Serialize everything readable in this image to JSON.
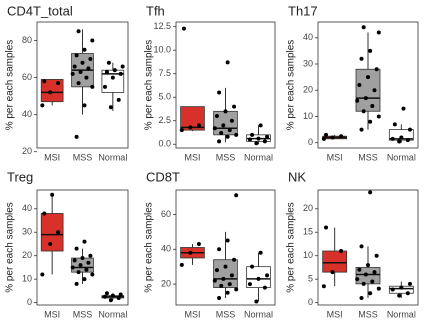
{
  "chart_data": [
    {
      "type": "box",
      "title": "CD4T_total",
      "y_label": "% per each samples",
      "categories": [
        "MSI",
        "MSS",
        "Normal"
      ],
      "ylim": [
        22,
        90
      ],
      "yticks": [
        20,
        40,
        60,
        80
      ],
      "boxes": [
        {
          "color": "#d7312a",
          "whislo": 45,
          "q1": 47,
          "median": 52,
          "q3": 59,
          "whishi": 59,
          "points": [
            45,
            52,
            57,
            58
          ]
        },
        {
          "color": "#a0a0a0",
          "whislo": 40,
          "q1": 55,
          "median": 64,
          "q3": 73,
          "whishi": 86,
          "points": [
            28,
            45,
            55,
            57,
            60,
            62,
            63,
            65,
            66,
            68,
            70,
            72,
            75,
            80,
            85
          ]
        },
        {
          "color": "#ffffff",
          "whislo": 42,
          "q1": 52,
          "median": 62,
          "q3": 64,
          "whishi": 68,
          "points": [
            44,
            48,
            55,
            60,
            62,
            63,
            64,
            66,
            68
          ]
        }
      ]
    },
    {
      "type": "box",
      "title": "Tfh",
      "y_label": "% per each samples",
      "categories": [
        "MSI",
        "MSS",
        "Normal"
      ],
      "ylim": [
        -0.4,
        13
      ],
      "yticks": [
        {
          "value": 0,
          "label": "0.0"
        },
        2.5,
        {
          "value": 5,
          "label": "5.0"
        },
        7.5,
        {
          "value": 10,
          "label": "10.0"
        },
        12.5
      ],
      "boxes": [
        {
          "color": "#d7312a",
          "whislo": 1.4,
          "q1": 1.5,
          "median": 1.8,
          "q3": 4.0,
          "whishi": 4.0,
          "points": [
            1.5,
            1.8,
            2.0,
            12.3
          ]
        },
        {
          "color": "#a0a0a0",
          "whislo": 0.2,
          "q1": 1.0,
          "median": 1.7,
          "q3": 3.5,
          "whishi": 6.0,
          "points": [
            0.3,
            0.8,
            1.0,
            1.2,
            1.5,
            1.7,
            2.0,
            2.5,
            3.0,
            3.5,
            4.0,
            5.5,
            8.7
          ]
        },
        {
          "color": "#ffffff",
          "whislo": 0,
          "q1": 0.3,
          "median": 0.6,
          "q3": 1.0,
          "whishi": 2.0,
          "points": [
            0.1,
            0.3,
            0.5,
            0.6,
            0.8,
            1.0,
            2.0
          ]
        }
      ]
    },
    {
      "type": "box",
      "title": "Th17",
      "y_label": "% per each samples",
      "categories": [
        "MSI",
        "MSS",
        "Normal"
      ],
      "ylim": [
        -2,
        46
      ],
      "yticks": [
        0,
        10,
        20,
        30,
        40
      ],
      "boxes": [
        {
          "color": "#d7312a",
          "whislo": 1.5,
          "q1": 1.5,
          "median": 2,
          "q3": 2.5,
          "whishi": 3,
          "points": [
            1.5,
            2,
            2.5,
            3
          ]
        },
        {
          "color": "#a0a0a0",
          "whislo": 5,
          "q1": 12,
          "median": 17,
          "q3": 28,
          "whishi": 42,
          "points": [
            5,
            8,
            10,
            12,
            14,
            16,
            17,
            20,
            22,
            25,
            28,
            32,
            35,
            42,
            44
          ]
        },
        {
          "color": "#ffffff",
          "whislo": 0,
          "q1": 1,
          "median": 1.5,
          "q3": 5,
          "whishi": 7,
          "points": [
            0.5,
            1,
            1.5,
            2,
            5,
            7,
            13
          ]
        }
      ]
    },
    {
      "type": "box",
      "title": "Treg",
      "y_label": "% per each samples",
      "categories": [
        "MSI",
        "MSS",
        "Normal"
      ],
      "ylim": [
        -1,
        48
      ],
      "yticks": [
        0,
        10,
        20,
        30,
        40
      ],
      "boxes": [
        {
          "color": "#d7312a",
          "whislo": 12,
          "q1": 22,
          "median": 29,
          "q3": 38,
          "whishi": 46,
          "points": [
            12,
            25,
            30,
            38,
            46
          ]
        },
        {
          "color": "#a0a0a0",
          "whislo": 8,
          "q1": 13,
          "median": 15,
          "q3": 19,
          "whishi": 23,
          "points": [
            8,
            10,
            12,
            13,
            14,
            15,
            16,
            17,
            18,
            19,
            20,
            23,
            26
          ]
        },
        {
          "color": "#ffffff",
          "whislo": 1,
          "q1": 2,
          "median": 2.5,
          "q3": 3,
          "whishi": 4,
          "points": [
            1,
            2,
            2.5,
            3,
            3.5,
            4
          ]
        }
      ]
    },
    {
      "type": "box",
      "title": "CD8T",
      "y_label": "% per each samples",
      "categories": [
        "MSI",
        "MSS",
        "Normal"
      ],
      "ylim": [
        8,
        74
      ],
      "yticks": [
        20,
        40,
        60
      ],
      "boxes": [
        {
          "color": "#d7312a",
          "whislo": 31,
          "q1": 35,
          "median": 38,
          "q3": 41,
          "whishi": 43,
          "points": [
            31,
            38,
            43
          ]
        },
        {
          "color": "#a0a0a0",
          "whislo": 12,
          "q1": 18,
          "median": 23,
          "q3": 34,
          "whishi": 50,
          "points": [
            12,
            15,
            17,
            19,
            20,
            22,
            23,
            25,
            28,
            30,
            34,
            40,
            45,
            71
          ]
        },
        {
          "color": "#ffffff",
          "whislo": 10,
          "q1": 18,
          "median": 23,
          "q3": 30,
          "whishi": 38,
          "points": [
            10,
            18,
            20,
            23,
            25,
            30,
            38
          ]
        }
      ]
    },
    {
      "type": "box",
      "title": "NK",
      "y_label": "% per each samples",
      "categories": [
        "MSI",
        "MSS",
        "Normal"
      ],
      "ylim": [
        -0.5,
        24
      ],
      "yticks": [
        0,
        5,
        10,
        15,
        20
      ],
      "boxes": [
        {
          "color": "#d7312a",
          "whislo": 3.5,
          "q1": 6.5,
          "median": 8.5,
          "q3": 11,
          "whishi": 16,
          "points": [
            3.5,
            6.5,
            11,
            16
          ]
        },
        {
          "color": "#a0a0a0",
          "whislo": 1,
          "q1": 4,
          "median": 6,
          "q3": 7.5,
          "whishi": 12,
          "points": [
            1,
            2,
            3,
            4,
            4.5,
            5,
            6,
            6.5,
            7,
            8,
            10,
            12,
            23.5
          ]
        },
        {
          "color": "#ffffff",
          "whislo": 1,
          "q1": 2,
          "median": 3,
          "q3": 3.5,
          "whishi": 4.5,
          "points": [
            1.5,
            2,
            2.8,
            3.2,
            4
          ]
        }
      ]
    }
  ]
}
